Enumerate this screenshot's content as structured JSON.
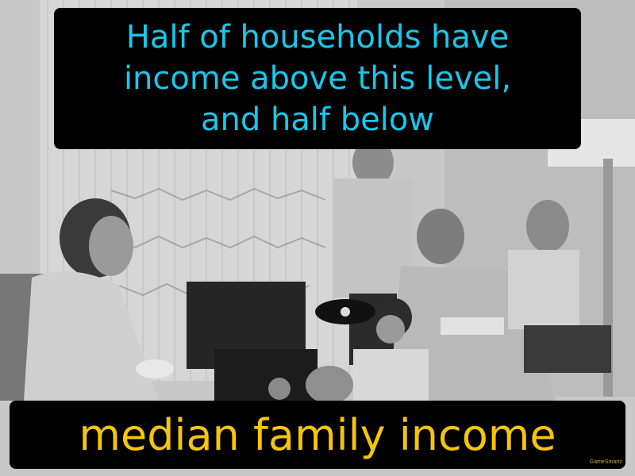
{
  "definition": {
    "line1": "Half of households have",
    "line2": "income above this level,",
    "line3": "and half below"
  },
  "term": "median family income",
  "brand": "GameSmartz",
  "colors": {
    "definition_text": "#18c8ec",
    "term_text": "#f5c40f",
    "box_background": "#000000"
  }
}
